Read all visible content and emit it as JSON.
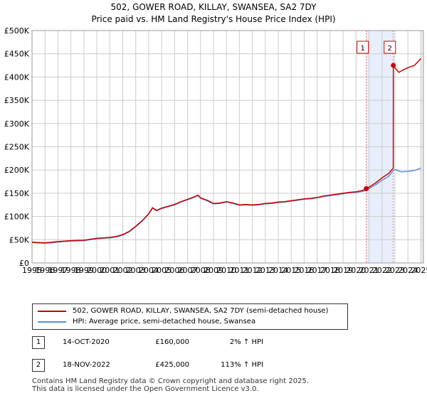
{
  "title_line1": "502, GOWER ROAD, KILLAY, SWANSEA, SA2 7DY",
  "title_line2": "Price paid vs. HM Land Registry's House Price Index (HPI)",
  "colors": {
    "property_line": "#cc0000",
    "hpi_line": "#5b8fd6",
    "shade": "#e8eefb",
    "marker_line": "#e06666",
    "grid": "#cccccc"
  },
  "chart_data": {
    "type": "line",
    "title": "Price paid vs. HM Land Registry's House Price Index (HPI)",
    "xlabel": "",
    "ylabel": "",
    "xlim": [
      1995,
      2025.2
    ],
    "ylim": [
      0,
      500000
    ],
    "x_ticks": [
      1995,
      1996,
      1997,
      1998,
      1999,
      2000,
      2001,
      2002,
      2003,
      2004,
      2005,
      2006,
      2007,
      2008,
      2009,
      2010,
      2011,
      2012,
      2013,
      2014,
      2015,
      2016,
      2017,
      2018,
      2019,
      2020,
      2021,
      2022,
      2023,
      2024,
      2025
    ],
    "y_ticks": [
      0,
      50000,
      100000,
      150000,
      200000,
      250000,
      300000,
      350000,
      400000,
      450000,
      500000
    ],
    "y_tick_labels": [
      "£0",
      "£50K",
      "£100K",
      "£150K",
      "£200K",
      "£250K",
      "£300K",
      "£350K",
      "£400K",
      "£450K",
      "£500K"
    ],
    "grid": true,
    "shaded_range": [
      2020.79,
      2022.88
    ],
    "series": [
      {
        "name": "HPI: Average price, semi-detached house, Swansea",
        "x": [
          1995,
          1995.5,
          1996,
          1996.5,
          1997,
          1997.5,
          1998,
          1998.5,
          1999,
          1999.5,
          2000,
          2000.5,
          2001,
          2001.5,
          2002,
          2002.5,
          2003,
          2003.5,
          2004,
          2004.3,
          2004.6,
          2005,
          2005.5,
          2006,
          2006.5,
          2007,
          2007.5,
          2007.8,
          2008,
          2008.5,
          2009,
          2009.5,
          2010,
          2010.5,
          2011,
          2011.5,
          2012,
          2012.5,
          2013,
          2013.5,
          2014,
          2014.5,
          2015,
          2015.5,
          2016,
          2016.5,
          2017,
          2017.5,
          2018,
          2018.5,
          2019,
          2019.5,
          2020,
          2020.5,
          2020.79,
          2021,
          2021.5,
          2022,
          2022.5,
          2022.88,
          2023,
          2023.5,
          2024,
          2024.5,
          2025
        ],
        "values": [
          44000,
          43000,
          42500,
          43500,
          45000,
          46000,
          47000,
          47500,
          48000,
          50000,
          52000,
          53000,
          54000,
          56000,
          60000,
          67000,
          78000,
          90000,
          105000,
          118000,
          112000,
          117000,
          121000,
          125000,
          131000,
          136000,
          141000,
          145000,
          139000,
          134000,
          127000,
          128000,
          131000,
          128000,
          124000,
          125000,
          124000,
          125000,
          127000,
          128000,
          130000,
          131000,
          133000,
          135000,
          137000,
          138000,
          140000,
          143000,
          145000,
          147000,
          149000,
          151000,
          152000,
          154000,
          156000,
          160000,
          168000,
          178000,
          186000,
          199000,
          201000,
          196000,
          197000,
          199000,
          204000
        ]
      },
      {
        "name": "502, GOWER ROAD, KILLAY, SWANSEA, SA2 7DY (semi-detached house)",
        "x": [
          1995,
          1995.5,
          1996,
          1996.5,
          1997,
          1997.5,
          1998,
          1998.5,
          1999,
          1999.5,
          2000,
          2000.5,
          2001,
          2001.5,
          2002,
          2002.5,
          2003,
          2003.5,
          2004,
          2004.3,
          2004.6,
          2005,
          2005.5,
          2006,
          2006.5,
          2007,
          2007.5,
          2007.8,
          2008,
          2008.5,
          2009,
          2009.5,
          2010,
          2010.5,
          2011,
          2011.5,
          2012,
          2012.5,
          2013,
          2013.5,
          2014,
          2014.5,
          2015,
          2015.5,
          2016,
          2016.5,
          2017,
          2017.5,
          2018,
          2018.5,
          2019,
          2019.5,
          2020,
          2020.5,
          2020.79,
          2021,
          2021.5,
          2022,
          2022.5,
          2022.87,
          2022.88,
          2023,
          2023.3,
          2023.6,
          2024,
          2024.5,
          2025
        ],
        "values": [
          45000,
          44000,
          43500,
          44500,
          46000,
          47000,
          48000,
          48500,
          49000,
          51000,
          53000,
          54000,
          55000,
          57000,
          61000,
          68000,
          79000,
          91000,
          106000,
          119000,
          113000,
          118000,
          122000,
          126000,
          132000,
          137000,
          142000,
          146000,
          140000,
          135000,
          128000,
          129000,
          132000,
          129000,
          125000,
          126000,
          125000,
          126000,
          128000,
          129000,
          131000,
          132000,
          134000,
          136000,
          138000,
          139000,
          141000,
          144000,
          146000,
          148000,
          150000,
          152000,
          153000,
          156000,
          160000,
          163000,
          172000,
          183000,
          192000,
          204000,
          425000,
          420000,
          410000,
          415000,
          420000,
          425000,
          440000
        ]
      }
    ],
    "transactions": [
      {
        "num": "1",
        "date": "14-OCT-2020",
        "x": 2020.79,
        "price": 160000,
        "price_label": "£160,000",
        "hpi": "2% ↑ HPI"
      },
      {
        "num": "2",
        "date": "18-NOV-2022",
        "x": 2022.88,
        "price": 425000,
        "price_label": "£425,000",
        "hpi": "113% ↑ HPI"
      }
    ]
  },
  "legend": {
    "property_label": "502, GOWER ROAD, KILLAY, SWANSEA, SA2 7DY (semi-detached house)",
    "hpi_label": "HPI: Average price, semi-detached house, Swansea"
  },
  "footer": {
    "line1": "Contains HM Land Registry data © Crown copyright and database right 2025.",
    "line2": "This data is licensed under the Open Government Licence v3.0."
  }
}
